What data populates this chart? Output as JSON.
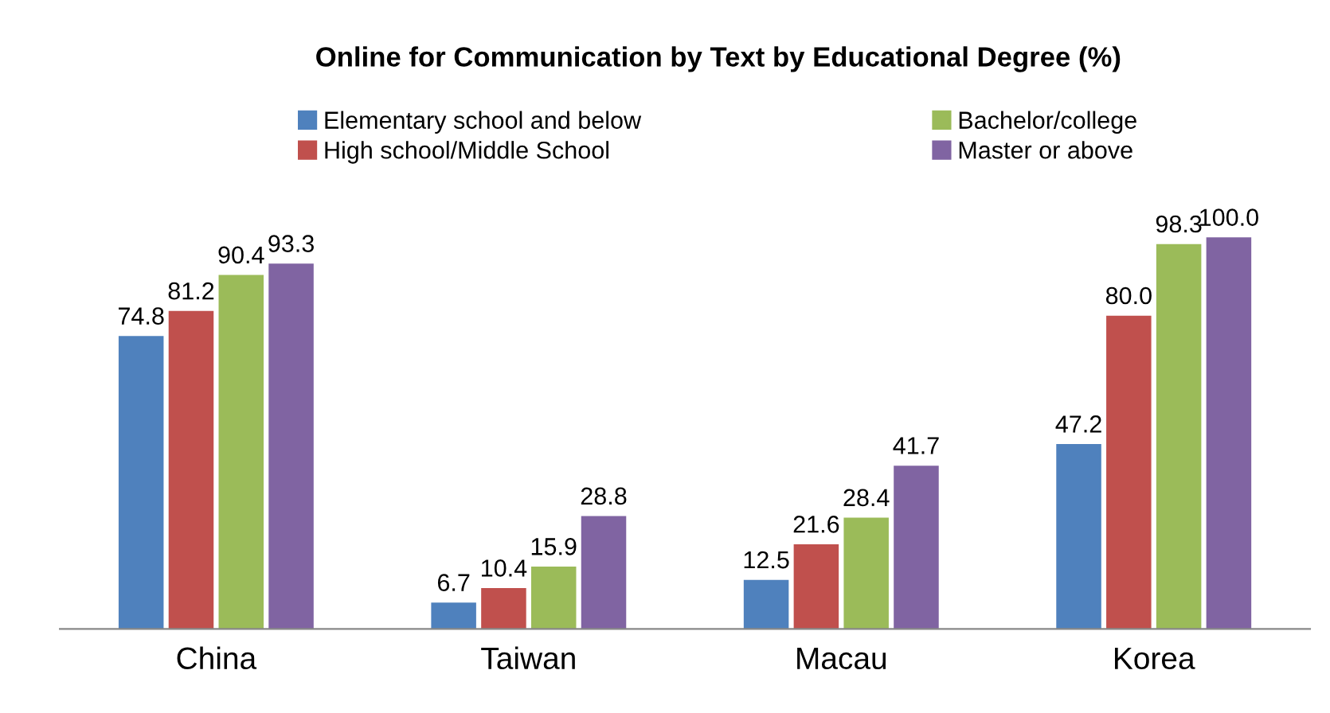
{
  "chart_data": {
    "type": "bar",
    "title": "Online for Communication by Text by Educational Degree (%)",
    "categories": [
      "China",
      "Taiwan",
      "Macau",
      "Korea"
    ],
    "series": [
      {
        "name": "Elementary school and below",
        "color": "#4f81bd",
        "values": [
          74.8,
          6.7,
          12.5,
          47.2
        ]
      },
      {
        "name": "High school/Middle School",
        "color": "#c0504d",
        "values": [
          81.2,
          10.4,
          21.6,
          80.0
        ],
        "value_labels": [
          "81.2",
          "10.4",
          "21.6",
          "80.0"
        ]
      },
      {
        "name": "Bachelor/college",
        "color": "#9bbb59",
        "values": [
          90.4,
          15.9,
          28.4,
          98.3
        ]
      },
      {
        "name": "Master or above",
        "color": "#8064a2",
        "values": [
          93.3,
          28.8,
          41.7,
          100.0
        ],
        "value_labels": [
          "93.3",
          "28.8",
          "41.7",
          "100.0"
        ]
      }
    ],
    "data_labels": true,
    "legend": "top",
    "grid": false
  }
}
